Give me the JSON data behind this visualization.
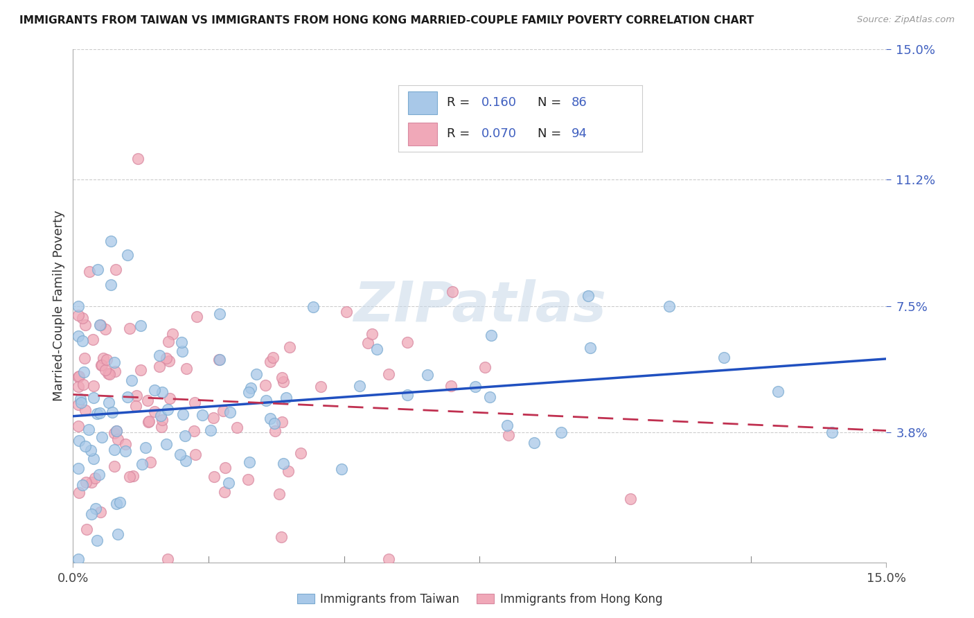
{
  "title": "IMMIGRANTS FROM TAIWAN VS IMMIGRANTS FROM HONG KONG MARRIED-COUPLE FAMILY POVERTY CORRELATION CHART",
  "source": "Source: ZipAtlas.com",
  "ylabel": "Married-Couple Family Poverty",
  "xlim": [
    0.0,
    0.15
  ],
  "ylim": [
    0.0,
    0.15
  ],
  "ytick_vals": [
    0.038,
    0.075,
    0.112,
    0.15
  ],
  "ytick_labels": [
    "3.8%",
    "7.5%",
    "11.2%",
    "15.0%"
  ],
  "xtick_vals": [
    0.0,
    0.15
  ],
  "xtick_labels": [
    "0.0%",
    "15.0%"
  ],
  "legend_R_taiwan": "0.160",
  "legend_N_taiwan": "86",
  "legend_R_hk": "0.070",
  "legend_N_hk": "94",
  "color_taiwan_fill": "#a8c8e8",
  "color_hk_fill": "#f0a8b8",
  "color_taiwan_edge": "#7aaad0",
  "color_hk_edge": "#d888a0",
  "color_taiwan_line": "#2050c0",
  "color_hk_line": "#c03050",
  "color_label_blue": "#4060c0",
  "color_text_dark": "#222222",
  "color_grid": "#cccccc",
  "watermark_color": "#c8d8e8",
  "bottom_legend_taiwan": "Immigrants from Taiwan",
  "bottom_legend_hk": "Immigrants from Hong Kong"
}
